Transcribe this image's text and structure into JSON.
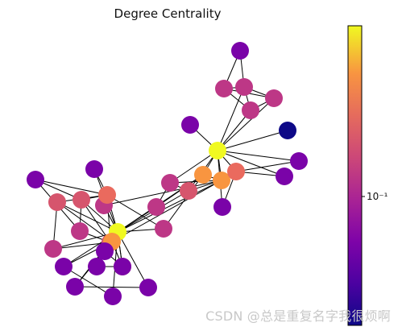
{
  "title": "Degree Centrality",
  "colorbar": {
    "tick_label": "10⁻¹"
  },
  "watermark": "CSDN @总是重复名字我很烦啊",
  "palette": {
    "c0": "#0d0887",
    "c1": "#7a03a8",
    "c2": "#bd3786",
    "c3": "#d6556d",
    "c4": "#ea6a5e",
    "c5": "#f89540",
    "c6": "#f0f921"
  },
  "nodes": [
    {
      "id": "n1",
      "color": "c1"
    },
    {
      "id": "n2",
      "color": "c2"
    },
    {
      "id": "n3",
      "color": "c2"
    },
    {
      "id": "n4",
      "color": "c2"
    },
    {
      "id": "n5",
      "color": "c2"
    },
    {
      "id": "n6",
      "color": "c1"
    },
    {
      "id": "n7",
      "color": "c0"
    },
    {
      "id": "n8",
      "color": "c6"
    },
    {
      "id": "n9",
      "color": "c1"
    },
    {
      "id": "n10",
      "color": "c1"
    },
    {
      "id": "n11",
      "color": "c1"
    },
    {
      "id": "n12",
      "color": "c5"
    },
    {
      "id": "n13",
      "color": "c5"
    },
    {
      "id": "n14",
      "color": "c4"
    },
    {
      "id": "n15",
      "color": "c1"
    },
    {
      "id": "n16",
      "color": "c3"
    },
    {
      "id": "n17",
      "color": "c2"
    },
    {
      "id": "n18",
      "color": "c2"
    },
    {
      "id": "n19",
      "color": "c2"
    },
    {
      "id": "n20",
      "color": "c2"
    },
    {
      "id": "n21",
      "color": "c4"
    },
    {
      "id": "n22",
      "color": "c1"
    },
    {
      "id": "n23",
      "color": "c3"
    },
    {
      "id": "n24",
      "color": "c3"
    },
    {
      "id": "n25",
      "color": "c2"
    },
    {
      "id": "n26",
      "color": "c2"
    },
    {
      "id": "n27",
      "color": "c3"
    },
    {
      "id": "n28",
      "color": "c6"
    },
    {
      "id": "n29",
      "color": "c5"
    },
    {
      "id": "n30",
      "color": "c1"
    },
    {
      "id": "n31",
      "color": "c1"
    },
    {
      "id": "n32",
      "color": "c3"
    },
    {
      "id": "n33",
      "color": "c1"
    },
    {
      "id": "n34",
      "color": "c1"
    },
    {
      "id": "n35",
      "color": "c1"
    },
    {
      "id": "n36",
      "color": "c1"
    },
    {
      "id": "n37",
      "color": "c1"
    }
  ],
  "edges": [
    [
      "n1",
      "n2"
    ],
    [
      "n1",
      "n3"
    ],
    [
      "n2",
      "n3"
    ],
    [
      "n2",
      "n4"
    ],
    [
      "n2",
      "n5"
    ],
    [
      "n3",
      "n4"
    ],
    [
      "n3",
      "n5"
    ],
    [
      "n4",
      "n5"
    ],
    [
      "n4",
      "n8"
    ],
    [
      "n5",
      "n8"
    ],
    [
      "n3",
      "n8"
    ],
    [
      "n6",
      "n8"
    ],
    [
      "n7",
      "n8"
    ],
    [
      "n9",
      "n8"
    ],
    [
      "n10",
      "n8"
    ],
    [
      "n11",
      "n8"
    ],
    [
      "n12",
      "n8"
    ],
    [
      "n13",
      "n8"
    ],
    [
      "n14",
      "n8"
    ],
    [
      "n16",
      "n8"
    ],
    [
      "n17",
      "n8"
    ],
    [
      "n12",
      "n13"
    ],
    [
      "n13",
      "n14"
    ],
    [
      "n13",
      "n16"
    ],
    [
      "n16",
      "n17"
    ],
    [
      "n13",
      "n17"
    ],
    [
      "n14",
      "n9"
    ],
    [
      "n14",
      "n10"
    ],
    [
      "n14",
      "n11"
    ],
    [
      "n12",
      "n18"
    ],
    [
      "n12",
      "n19"
    ],
    [
      "n12",
      "n28"
    ],
    [
      "n13",
      "n20"
    ],
    [
      "n13",
      "n28"
    ],
    [
      "n13",
      "n29"
    ],
    [
      "n16",
      "n28"
    ],
    [
      "n17",
      "n18"
    ],
    [
      "n18",
      "n28"
    ],
    [
      "n20",
      "n28"
    ],
    [
      "n15",
      "n21"
    ],
    [
      "n15",
      "n28"
    ],
    [
      "n21",
      "n28"
    ],
    [
      "n21",
      "n22"
    ],
    [
      "n21",
      "n19"
    ],
    [
      "n22",
      "n24"
    ],
    [
      "n22",
      "n25"
    ],
    [
      "n23",
      "n21"
    ],
    [
      "n23",
      "n26"
    ],
    [
      "n23",
      "n28"
    ],
    [
      "n23",
      "n29"
    ],
    [
      "n24",
      "n21"
    ],
    [
      "n24",
      "n25"
    ],
    [
      "n24",
      "n28"
    ],
    [
      "n24",
      "n27"
    ],
    [
      "n25",
      "n27"
    ],
    [
      "n26",
      "n27"
    ],
    [
      "n26",
      "n28"
    ],
    [
      "n27",
      "n28"
    ],
    [
      "n27",
      "n29"
    ],
    [
      "n27",
      "n21"
    ],
    [
      "n28",
      "n29"
    ],
    [
      "n28",
      "n30"
    ],
    [
      "n28",
      "n31"
    ],
    [
      "n28",
      "n32"
    ],
    [
      "n28",
      "n33"
    ],
    [
      "n28",
      "n34"
    ],
    [
      "n28",
      "n35"
    ],
    [
      "n28",
      "n36"
    ],
    [
      "n28",
      "n37"
    ],
    [
      "n28",
      "n19"
    ],
    [
      "n29",
      "n30"
    ],
    [
      "n29",
      "n31"
    ],
    [
      "n29",
      "n33"
    ],
    [
      "n29",
      "n32"
    ],
    [
      "n32",
      "n36"
    ],
    [
      "n32",
      "n33"
    ],
    [
      "n32",
      "n37"
    ],
    [
      "n30",
      "n34"
    ],
    [
      "n31",
      "n35"
    ],
    [
      "n29",
      "n37"
    ]
  ]
}
